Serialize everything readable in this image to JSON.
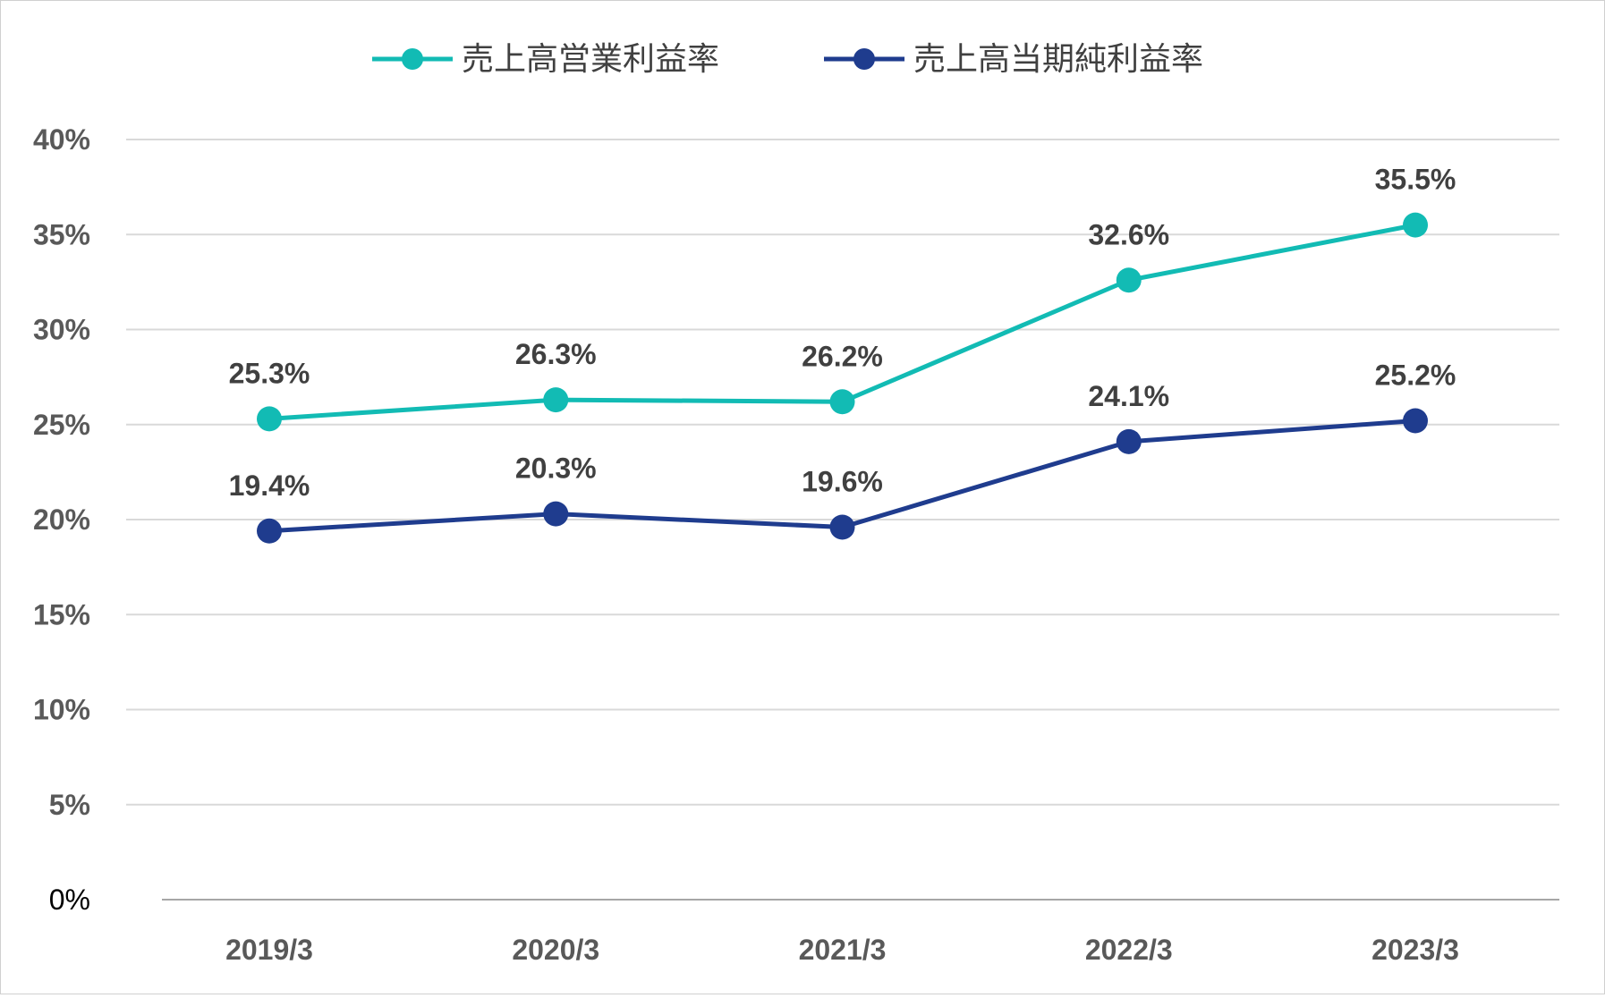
{
  "chart_data": {
    "type": "line",
    "categories": [
      "2019/3",
      "2020/3",
      "2021/3",
      "2022/3",
      "2023/3"
    ],
    "series": [
      {
        "name": "売上高営業利益率",
        "values": [
          25.3,
          26.3,
          26.2,
          32.6,
          35.5
        ],
        "labels": [
          "25.3%",
          "26.3%",
          "26.2%",
          "32.6%",
          "35.5%"
        ],
        "color": "#12BBB4"
      },
      {
        "name": "売上高当期純利益率",
        "values": [
          19.4,
          20.3,
          19.6,
          24.1,
          25.2
        ],
        "labels": [
          "19.4%",
          "20.3%",
          "19.6%",
          "24.1%",
          "25.2%"
        ],
        "color": "#1F3C8E"
      }
    ],
    "yticks": [
      0,
      5,
      10,
      15,
      20,
      25,
      30,
      35,
      40
    ],
    "ytick_labels": [
      "0%",
      "5%",
      "10%",
      "15%",
      "20%",
      "25%",
      "30%",
      "35%",
      "40%"
    ],
    "ylim": [
      0,
      40
    ],
    "grid": true,
    "legend_position": "top"
  }
}
